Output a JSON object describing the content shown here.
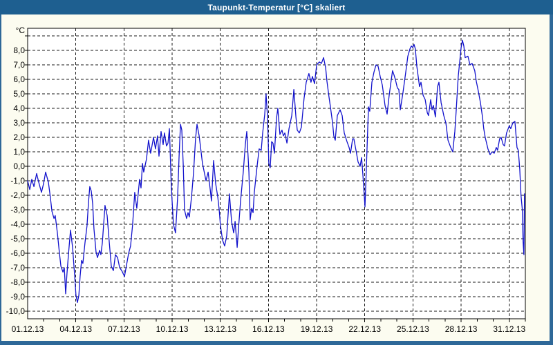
{
  "window": {
    "title": "Taupunkt-Temperatur [°C] skaliert"
  },
  "colors": {
    "titlebar_bg": "#1E5F90",
    "titlebar_text": "#FFFFFF",
    "frame_border": "#2E6898",
    "window_bg": "#FCFCF0",
    "plot_bg": "#FFFFFF",
    "grid": "#1a1a1a",
    "axis": "#000000",
    "line": "#1212CC",
    "tick_text": "#000000"
  },
  "chart_data": {
    "type": "line",
    "title": "Taupunkt-Temperatur [°C] skaliert",
    "y_unit_label": "°C",
    "xlabel": "",
    "ylabel": "°C",
    "grid": "dashed",
    "legend": "none",
    "xlim_days": [
      0,
      31
    ],
    "ylim": [
      -10.6,
      9.6
    ],
    "x_ticks": [
      {
        "day": 0,
        "label": "01.12.13"
      },
      {
        "day": 3,
        "label": "04.12.13"
      },
      {
        "day": 6,
        "label": "07.12.13"
      },
      {
        "day": 9,
        "label": "10.12.13"
      },
      {
        "day": 12,
        "label": "13.12.13"
      },
      {
        "day": 15,
        "label": "16.12.13"
      },
      {
        "day": 18,
        "label": "19.12.13"
      },
      {
        "day": 21,
        "label": "22.12.13"
      },
      {
        "day": 24,
        "label": "25.12.13"
      },
      {
        "day": 27,
        "label": "28.12.13"
      },
      {
        "day": 30,
        "label": "31.12.13"
      }
    ],
    "y_ticks": [
      {
        "value": 8,
        "label": "8,0"
      },
      {
        "value": 7,
        "label": "7,0"
      },
      {
        "value": 6,
        "label": "6,0"
      },
      {
        "value": 5,
        "label": "5,0"
      },
      {
        "value": 4,
        "label": "4,0"
      },
      {
        "value": 3,
        "label": "3,0"
      },
      {
        "value": 2,
        "label": "2,0"
      },
      {
        "value": 1,
        "label": "1,0"
      },
      {
        "value": 0,
        "label": "0,0"
      },
      {
        "value": -1,
        "label": "-1,0"
      },
      {
        "value": -2,
        "label": "-2,0"
      },
      {
        "value": -3,
        "label": "-3,0"
      },
      {
        "value": -4,
        "label": "-4,0"
      },
      {
        "value": -5,
        "label": "-5,0"
      },
      {
        "value": -6,
        "label": "-6,0"
      },
      {
        "value": -7,
        "label": "-7,0"
      },
      {
        "value": -8,
        "label": "-8,0"
      },
      {
        "value": -9,
        "label": "-9,0"
      },
      {
        "value": -10,
        "label": "-10,0"
      }
    ],
    "series": [
      {
        "name": "Taupunkt-Temperatur",
        "color": "#1212CC",
        "points": [
          [
            0.0,
            -1.0
          ],
          [
            0.13,
            -1.6
          ],
          [
            0.26,
            -0.9
          ],
          [
            0.39,
            -1.4
          ],
          [
            0.56,
            -0.5
          ],
          [
            0.69,
            -1.1
          ],
          [
            0.86,
            -1.8
          ],
          [
            0.99,
            -1.2
          ],
          [
            1.12,
            -0.4
          ],
          [
            1.29,
            -1.1
          ],
          [
            1.42,
            -2.2
          ],
          [
            1.51,
            -3.1
          ],
          [
            1.64,
            -3.6
          ],
          [
            1.72,
            -3.4
          ],
          [
            1.85,
            -4.6
          ],
          [
            1.98,
            -6.0
          ],
          [
            2.07,
            -6.9
          ],
          [
            2.2,
            -7.3
          ],
          [
            2.28,
            -7.0
          ],
          [
            2.37,
            -8.8
          ],
          [
            2.45,
            -7.4
          ],
          [
            2.54,
            -6.1
          ],
          [
            2.67,
            -4.4
          ],
          [
            2.8,
            -5.6
          ],
          [
            2.93,
            -7.6
          ],
          [
            3.01,
            -8.9
          ],
          [
            3.1,
            -9.4
          ],
          [
            3.19,
            -8.9
          ],
          [
            3.27,
            -7.6
          ],
          [
            3.36,
            -6.5
          ],
          [
            3.44,
            -6.7
          ],
          [
            3.57,
            -5.3
          ],
          [
            3.7,
            -4.1
          ],
          [
            3.79,
            -2.5
          ],
          [
            3.87,
            -1.4
          ],
          [
            3.96,
            -1.7
          ],
          [
            4.05,
            -2.6
          ],
          [
            4.13,
            -4.3
          ],
          [
            4.26,
            -5.9
          ],
          [
            4.35,
            -6.3
          ],
          [
            4.48,
            -5.8
          ],
          [
            4.56,
            -6.1
          ],
          [
            4.65,
            -5.3
          ],
          [
            4.74,
            -3.9
          ],
          [
            4.82,
            -2.7
          ],
          [
            4.95,
            -3.4
          ],
          [
            5.08,
            -5.2
          ],
          [
            5.21,
            -6.9
          ],
          [
            5.34,
            -7.2
          ],
          [
            5.47,
            -6.1
          ],
          [
            5.6,
            -6.3
          ],
          [
            5.73,
            -7.0
          ],
          [
            5.86,
            -7.2
          ],
          [
            6.03,
            -7.6
          ],
          [
            6.16,
            -6.8
          ],
          [
            6.29,
            -6.0
          ],
          [
            6.41,
            -5.5
          ],
          [
            6.54,
            -4.0
          ],
          [
            6.67,
            -1.8
          ],
          [
            6.8,
            -2.9
          ],
          [
            6.97,
            -0.9
          ],
          [
            7.06,
            -1.5
          ],
          [
            7.15,
            0.2
          ],
          [
            7.23,
            -0.4
          ],
          [
            7.4,
            0.5
          ],
          [
            7.53,
            1.8
          ],
          [
            7.66,
            0.9
          ],
          [
            7.84,
            2.0
          ],
          [
            7.96,
            1.2
          ],
          [
            8.09,
            2.1
          ],
          [
            8.18,
            0.7
          ],
          [
            8.31,
            2.4
          ],
          [
            8.44,
            1.5
          ],
          [
            8.52,
            2.3
          ],
          [
            8.65,
            1.4
          ],
          [
            8.74,
            1.6
          ],
          [
            8.83,
            2.6
          ],
          [
            8.95,
            -1.5
          ],
          [
            9.08,
            -4.0
          ],
          [
            9.21,
            -4.6
          ],
          [
            9.34,
            -2.2
          ],
          [
            9.43,
            0.6
          ],
          [
            9.52,
            2.9
          ],
          [
            9.6,
            2.5
          ],
          [
            9.69,
            0.1
          ],
          [
            9.77,
            -3.0
          ],
          [
            9.9,
            -3.6
          ],
          [
            9.99,
            -3.2
          ],
          [
            10.07,
            -3.5
          ],
          [
            10.2,
            -2.2
          ],
          [
            10.33,
            -0.5
          ],
          [
            10.46,
            1.9
          ],
          [
            10.55,
            2.9
          ],
          [
            10.68,
            2.1
          ],
          [
            10.76,
            1.4
          ],
          [
            10.89,
            0.2
          ],
          [
            11.02,
            -0.5
          ],
          [
            11.11,
            -1.0
          ],
          [
            11.24,
            -0.4
          ],
          [
            11.37,
            -1.6
          ],
          [
            11.45,
            -2.4
          ],
          [
            11.58,
            0.4
          ],
          [
            11.71,
            -1.2
          ],
          [
            11.84,
            -2.1
          ],
          [
            11.93,
            -3.0
          ],
          [
            12.01,
            -4.1
          ],
          [
            12.14,
            -5.1
          ],
          [
            12.27,
            -5.5
          ],
          [
            12.4,
            -4.8
          ],
          [
            12.57,
            -1.9
          ],
          [
            12.7,
            -3.8
          ],
          [
            12.83,
            -4.6
          ],
          [
            12.92,
            -3.8
          ],
          [
            13.05,
            -5.6
          ],
          [
            13.13,
            -4.3
          ],
          [
            13.26,
            -2.4
          ],
          [
            13.43,
            -0.4
          ],
          [
            13.56,
            1.5
          ],
          [
            13.65,
            2.4
          ],
          [
            13.78,
            -0.4
          ],
          [
            13.86,
            -3.7
          ],
          [
            13.95,
            -2.9
          ],
          [
            14.04,
            -3.2
          ],
          [
            14.12,
            -1.8
          ],
          [
            14.29,
            0.0
          ],
          [
            14.42,
            1.2
          ],
          [
            14.55,
            1.1
          ],
          [
            14.64,
            2.3
          ],
          [
            14.77,
            3.6
          ],
          [
            14.85,
            5.0
          ],
          [
            14.94,
            3.4
          ],
          [
            15.02,
            0.2
          ],
          [
            15.11,
            -0.1
          ],
          [
            15.2,
            1.7
          ],
          [
            15.28,
            1.6
          ],
          [
            15.37,
            0.9
          ],
          [
            15.5,
            3.3
          ],
          [
            15.58,
            4.0
          ],
          [
            15.71,
            2.2
          ],
          [
            15.84,
            2.5
          ],
          [
            15.93,
            2.1
          ],
          [
            16.02,
            2.3
          ],
          [
            16.15,
            1.6
          ],
          [
            16.28,
            2.6
          ],
          [
            16.45,
            3.5
          ],
          [
            16.58,
            5.3
          ],
          [
            16.71,
            3.4
          ],
          [
            16.79,
            2.5
          ],
          [
            16.92,
            2.3
          ],
          [
            17.05,
            2.7
          ],
          [
            17.22,
            4.7
          ],
          [
            17.35,
            5.8
          ],
          [
            17.52,
            6.4
          ],
          [
            17.65,
            5.8
          ],
          [
            17.74,
            6.2
          ],
          [
            17.87,
            5.7
          ],
          [
            18.0,
            7.0
          ],
          [
            18.17,
            7.2
          ],
          [
            18.3,
            7.1
          ],
          [
            18.43,
            7.5
          ],
          [
            18.56,
            6.8
          ],
          [
            18.64,
            5.9
          ],
          [
            18.77,
            4.8
          ],
          [
            18.86,
            4.1
          ],
          [
            18.99,
            3.0
          ],
          [
            19.07,
            2.1
          ],
          [
            19.16,
            1.8
          ],
          [
            19.29,
            3.5
          ],
          [
            19.46,
            3.9
          ],
          [
            19.59,
            3.5
          ],
          [
            19.72,
            2.3
          ],
          [
            19.89,
            1.7
          ],
          [
            20.02,
            1.3
          ],
          [
            20.11,
            0.9
          ],
          [
            20.24,
            1.9
          ],
          [
            20.32,
            1.9
          ],
          [
            20.45,
            1.1
          ],
          [
            20.58,
            0.3
          ],
          [
            20.71,
            0.0
          ],
          [
            20.8,
            0.6
          ],
          [
            20.88,
            -0.6
          ],
          [
            21.01,
            -2.8
          ],
          [
            21.1,
            0.0
          ],
          [
            21.18,
            2.5
          ],
          [
            21.23,
            4.1
          ],
          [
            21.31,
            3.8
          ],
          [
            21.44,
            5.8
          ],
          [
            21.57,
            6.5
          ],
          [
            21.7,
            7.0
          ],
          [
            21.83,
            6.9
          ],
          [
            21.96,
            6.2
          ],
          [
            22.09,
            5.6
          ],
          [
            22.26,
            4.2
          ],
          [
            22.39,
            3.6
          ],
          [
            22.52,
            4.9
          ],
          [
            22.65,
            6.0
          ],
          [
            22.73,
            6.6
          ],
          [
            22.82,
            6.3
          ],
          [
            22.9,
            6.0
          ],
          [
            23.03,
            5.4
          ],
          [
            23.12,
            5.3
          ],
          [
            23.21,
            3.9
          ],
          [
            23.38,
            5.1
          ],
          [
            23.55,
            6.5
          ],
          [
            23.68,
            7.6
          ],
          [
            23.81,
            8.1
          ],
          [
            23.9,
            8.3
          ],
          [
            23.98,
            8.2
          ],
          [
            24.07,
            8.4
          ],
          [
            24.15,
            8.1
          ],
          [
            24.24,
            6.9
          ],
          [
            24.41,
            5.5
          ],
          [
            24.5,
            5.8
          ],
          [
            24.63,
            4.9
          ],
          [
            24.76,
            4.6
          ],
          [
            24.89,
            3.7
          ],
          [
            24.97,
            3.5
          ],
          [
            25.1,
            4.6
          ],
          [
            25.19,
            3.9
          ],
          [
            25.27,
            4.2
          ],
          [
            25.4,
            3.4
          ],
          [
            25.53,
            5.5
          ],
          [
            25.62,
            5.8
          ],
          [
            25.75,
            4.4
          ],
          [
            25.92,
            3.5
          ],
          [
            26.05,
            3.0
          ],
          [
            26.18,
            1.8
          ],
          [
            26.35,
            1.3
          ],
          [
            26.48,
            1.0
          ],
          [
            26.61,
            2.4
          ],
          [
            26.69,
            3.8
          ],
          [
            26.82,
            6.2
          ],
          [
            27.0,
            8.2
          ],
          [
            27.08,
            8.7
          ],
          [
            27.17,
            8.3
          ],
          [
            27.25,
            7.5
          ],
          [
            27.42,
            7.6
          ],
          [
            27.55,
            7.0
          ],
          [
            27.68,
            7.1
          ],
          [
            27.85,
            6.6
          ],
          [
            27.94,
            5.9
          ],
          [
            28.07,
            5.2
          ],
          [
            28.2,
            4.4
          ],
          [
            28.33,
            3.4
          ],
          [
            28.41,
            2.6
          ],
          [
            28.5,
            2.0
          ],
          [
            28.67,
            1.2
          ],
          [
            28.8,
            0.8
          ],
          [
            28.93,
            1.0
          ],
          [
            29.06,
            0.9
          ],
          [
            29.19,
            1.3
          ],
          [
            29.27,
            1.1
          ],
          [
            29.4,
            1.9
          ],
          [
            29.49,
            2.0
          ],
          [
            29.62,
            1.5
          ],
          [
            29.7,
            1.4
          ],
          [
            29.83,
            2.3
          ],
          [
            30.0,
            2.8
          ],
          [
            30.09,
            2.6
          ],
          [
            30.22,
            3.0
          ],
          [
            30.35,
            3.1
          ],
          [
            30.48,
            1.3
          ],
          [
            30.56,
            1.1
          ],
          [
            30.65,
            -0.2
          ],
          [
            30.73,
            -2.0
          ],
          [
            30.82,
            -3.1
          ],
          [
            30.86,
            -5.2
          ],
          [
            30.91,
            -6.1
          ],
          [
            30.95,
            -1.9
          ]
        ]
      }
    ]
  }
}
